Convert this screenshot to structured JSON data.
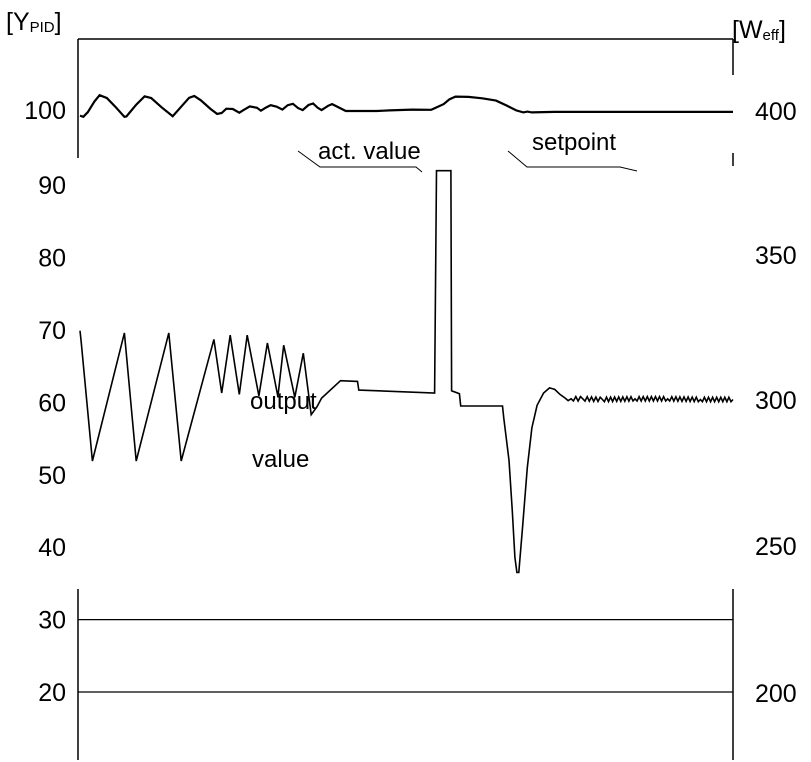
{
  "chart_data": {
    "type": "line",
    "left_axis": {
      "unit_open": "[Y",
      "unit_sub": "PID",
      "unit_close": "]",
      "ticks": [
        100,
        90,
        80,
        70,
        60,
        50,
        40,
        30,
        20
      ]
    },
    "right_axis": {
      "unit_open": "[W",
      "unit_sub": "eff",
      "unit_close": "]",
      "ticks": [
        400,
        350,
        300,
        250,
        200
      ]
    },
    "x_range": [
      0,
      100
    ],
    "grid_lines_left_units": [
      30,
      20
    ],
    "annotations": {
      "act_value": "act. value",
      "setpoint": "setpoint",
      "output_line1": "output",
      "output_line2": "value"
    },
    "series": [
      {
        "name": "act. value",
        "axis": "right",
        "points": [
          [
            0,
            398.4
          ],
          [
            0.5,
            398.0
          ],
          [
            1.2,
            399.6
          ],
          [
            2.2,
            403.3
          ],
          [
            3,
            405.5
          ],
          [
            4.1,
            404.5
          ],
          [
            5.4,
            401.5
          ],
          [
            6.8,
            398.0
          ],
          [
            7.1,
            398.1
          ],
          [
            8.6,
            402.2
          ],
          [
            9.9,
            405.1
          ],
          [
            10.9,
            404.5
          ],
          [
            12.5,
            401.3
          ],
          [
            14.2,
            398.2
          ],
          [
            15.5,
            401.5
          ],
          [
            16.7,
            404.6
          ],
          [
            17.5,
            405.2
          ],
          [
            18.5,
            403.7
          ],
          [
            20,
            400.7
          ],
          [
            21,
            399.0
          ],
          [
            21.7,
            399.3
          ],
          [
            22.4,
            400.8
          ],
          [
            23.4,
            400.7
          ],
          [
            24.4,
            399.4
          ],
          [
            25.1,
            400.4
          ],
          [
            26,
            401.6
          ],
          [
            27.1,
            401.1
          ],
          [
            27.7,
            400.1
          ],
          [
            28.5,
            401.2
          ],
          [
            29.2,
            402.0
          ],
          [
            30.1,
            401.5
          ],
          [
            31,
            400.5
          ],
          [
            31.8,
            402.0
          ],
          [
            32.6,
            402.5
          ],
          [
            33.4,
            401.0
          ],
          [
            34.1,
            400.3
          ],
          [
            35.0,
            402.1
          ],
          [
            35.7,
            402.6
          ],
          [
            36.4,
            401.1
          ],
          [
            37.0,
            400.3
          ],
          [
            38.0,
            401.8
          ],
          [
            38.6,
            402.4
          ],
          [
            39.3,
            401.6
          ],
          [
            40.7,
            400.0
          ],
          [
            45.4,
            400.0
          ],
          [
            47.4,
            400.2
          ],
          [
            50.9,
            400.5
          ],
          [
            53.8,
            400.4
          ],
          [
            55.7,
            402.4
          ],
          [
            56.6,
            404.1
          ],
          [
            57.5,
            405.0
          ],
          [
            59.5,
            404.9
          ],
          [
            61.6,
            404.4
          ],
          [
            63.7,
            403.6
          ],
          [
            65.4,
            401.8
          ],
          [
            66.8,
            400.2
          ],
          [
            67.9,
            399.5
          ],
          [
            68.5,
            399.8
          ],
          [
            69.2,
            399.5
          ],
          [
            72.7,
            399.7
          ],
          [
            100,
            399.7
          ]
        ]
      },
      {
        "name": "output value",
        "axis": "left",
        "points": [
          [
            0,
            69.9
          ],
          [
            0.2,
            68.2
          ],
          [
            1.9,
            51.9
          ],
          [
            6.8,
            69.6
          ],
          [
            8.6,
            51.9
          ],
          [
            13.6,
            69.6
          ],
          [
            15.5,
            51.9
          ],
          [
            20.5,
            68.7
          ],
          [
            21.7,
            61.3
          ],
          [
            23,
            69.3
          ],
          [
            24.4,
            61.1
          ],
          [
            25.6,
            69.3
          ],
          [
            27.4,
            60.9
          ],
          [
            28.7,
            68.2
          ],
          [
            30.3,
            60.8
          ],
          [
            31.2,
            67.9
          ],
          [
            32.9,
            60.7
          ],
          [
            34.2,
            66.8
          ],
          [
            35.4,
            58.3
          ],
          [
            36.3,
            59.4
          ],
          [
            37.0,
            60.6
          ],
          [
            39.9,
            63.0
          ],
          [
            42.5,
            62.9
          ],
          [
            42.7,
            61.7
          ],
          [
            54.3,
            61.3
          ],
          [
            54.6,
            92.0
          ],
          [
            56.8,
            92.0
          ],
          [
            56.9,
            61.6
          ],
          [
            58.1,
            61.2
          ],
          [
            58.3,
            59.5
          ],
          [
            64.7,
            59.5
          ],
          [
            64.9,
            57.8
          ],
          [
            65.7,
            52.0
          ],
          [
            66.2,
            45.0
          ],
          [
            66.6,
            38.6
          ],
          [
            66.9,
            36.5
          ],
          [
            67.2,
            36.5
          ],
          [
            67.8,
            43.0
          ],
          [
            68.5,
            51.0
          ],
          [
            69.2,
            56.5
          ],
          [
            70.0,
            59.6
          ],
          [
            71.0,
            61.3
          ],
          [
            71.9,
            62.0
          ],
          [
            72.7,
            61.8
          ],
          [
            73.5,
            61.1
          ],
          [
            74.3,
            60.6
          ],
          [
            75.2,
            60.5
          ],
          [
            77.0,
            60.5
          ],
          [
            80.0,
            60.4
          ],
          [
            85.0,
            60.5
          ],
          [
            90.0,
            60.5
          ],
          [
            95.0,
            60.4
          ],
          [
            100,
            60.4
          ]
        ]
      }
    ]
  }
}
